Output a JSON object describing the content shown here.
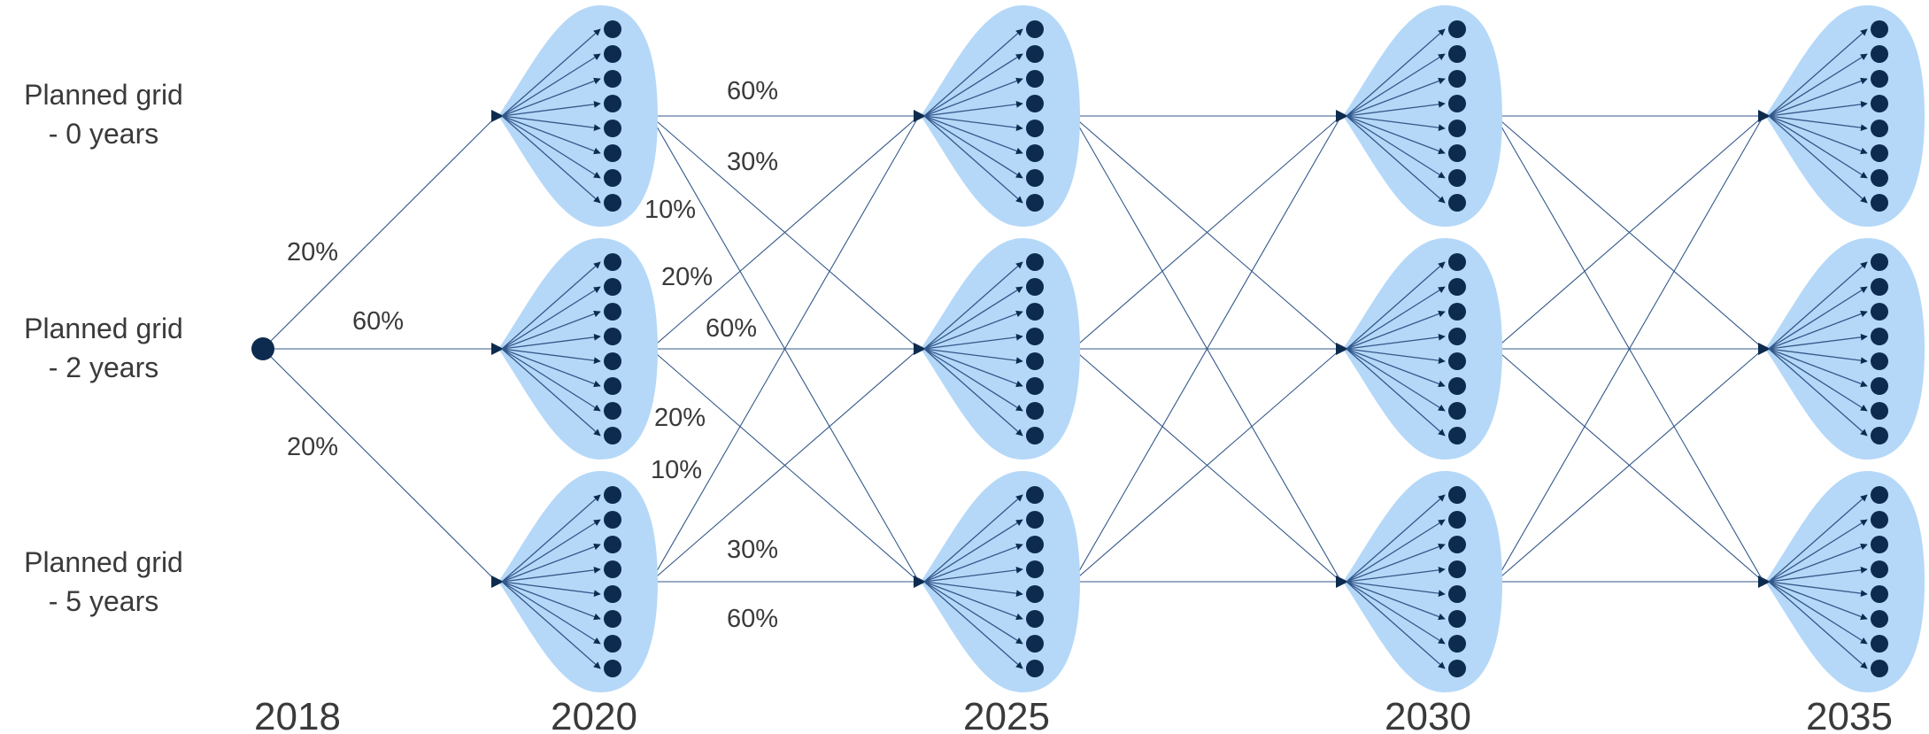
{
  "colors": {
    "blob_fill": "#b5d8f8",
    "node_dark": "#0d2b4e",
    "edge": "#33588a",
    "text": "#3a3a3a"
  },
  "row_labels": [
    {
      "line1": "Planned grid",
      "line2": "- 0 years"
    },
    {
      "line1": "Planned grid",
      "line2": "- 2 years"
    },
    {
      "line1": "Planned grid",
      "line2": "- 5 years"
    }
  ],
  "years": [
    "2018",
    "2020",
    "2025",
    "2030",
    "2035"
  ],
  "root_probabilities": [
    "20%",
    "60%",
    "20%"
  ],
  "transition_probabilities": {
    "from_row_0": [
      "60%",
      "30%",
      "10%"
    ],
    "from_row_1": [
      "20%",
      "60%",
      "20%"
    ],
    "from_row_2": [
      "10%",
      "30%",
      "60%"
    ]
  },
  "leaves_per_scenario": 8
}
